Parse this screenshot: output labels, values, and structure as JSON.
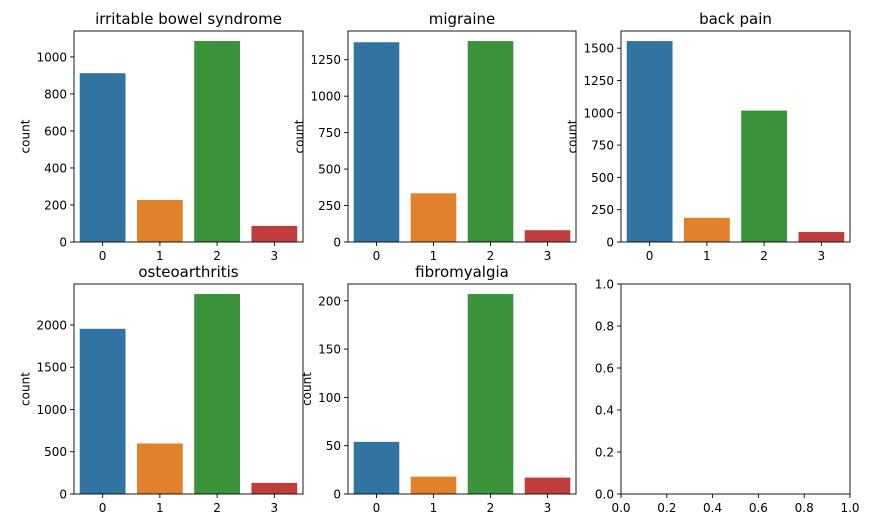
{
  "figure": {
    "background": "#ffffff"
  },
  "palette": [
    "#3274a1",
    "#e1812c",
    "#3a923a",
    "#c03d3e"
  ],
  "chart_data": [
    {
      "type": "bar",
      "title": "irritable bowel syndrome",
      "xlabel": "",
      "ylabel": "count",
      "categories": [
        "0",
        "1",
        "2",
        "3"
      ],
      "values": [
        912,
        227,
        1086,
        87
      ],
      "ylim": [
        0,
        1140
      ],
      "yticks": [
        0,
        200,
        400,
        600,
        800,
        1000
      ],
      "ytick_labels": [
        "0",
        "200",
        "400",
        "600",
        "800",
        "1000"
      ],
      "grid": false,
      "legend": "none"
    },
    {
      "type": "bar",
      "title": "migraine",
      "xlabel": "",
      "ylabel": "count",
      "categories": [
        "0",
        "1",
        "2",
        "3"
      ],
      "values": [
        1370,
        334,
        1378,
        81
      ],
      "ylim": [
        0,
        1447
      ],
      "yticks": [
        0,
        250,
        500,
        750,
        1000,
        1250
      ],
      "ytick_labels": [
        "0",
        "250",
        "500",
        "750",
        "1000",
        "1250"
      ],
      "grid": false,
      "legend": "none"
    },
    {
      "type": "bar",
      "title": "back pain",
      "xlabel": "",
      "ylabel": "count",
      "categories": [
        "0",
        "1",
        "2",
        "3"
      ],
      "values": [
        1555,
        187,
        1017,
        77
      ],
      "ylim": [
        0,
        1633
      ],
      "yticks": [
        0,
        250,
        500,
        750,
        1000,
        1250,
        1500
      ],
      "ytick_labels": [
        "0",
        "250",
        "500",
        "750",
        "1000",
        "1250",
        "1500"
      ],
      "grid": false,
      "legend": "none"
    },
    {
      "type": "bar",
      "title": "osteoarthritis",
      "xlabel": "",
      "ylabel": "count",
      "categories": [
        "0",
        "1",
        "2",
        "3"
      ],
      "values": [
        1955,
        598,
        2367,
        131
      ],
      "ylim": [
        0,
        2485
      ],
      "yticks": [
        0,
        500,
        1000,
        1500,
        2000
      ],
      "ytick_labels": [
        "0",
        "500",
        "1000",
        "1500",
        "2000"
      ],
      "grid": false,
      "legend": "none"
    },
    {
      "type": "bar",
      "title": "fibromyalgia",
      "xlabel": "",
      "ylabel": "count",
      "categories": [
        "0",
        "1",
        "2",
        "3"
      ],
      "values": [
        54,
        18,
        207,
        17
      ],
      "ylim": [
        0,
        217.4
      ],
      "yticks": [
        0,
        50,
        100,
        150,
        200
      ],
      "ytick_labels": [
        "0",
        "50",
        "100",
        "150",
        "200"
      ],
      "grid": false,
      "legend": "none"
    },
    {
      "type": "empty",
      "title": "",
      "xlabel": "",
      "ylabel": "",
      "xlim": [
        0,
        1
      ],
      "ylim": [
        0,
        1
      ],
      "xticks": [
        0,
        0.2,
        0.4,
        0.6,
        0.8,
        1.0
      ],
      "xtick_labels": [
        "0.0",
        "0.2",
        "0.4",
        "0.6",
        "0.8",
        "1.0"
      ],
      "yticks": [
        0,
        0.2,
        0.4,
        0.6,
        0.8,
        1.0
      ],
      "ytick_labels": [
        "0.0",
        "0.2",
        "0.4",
        "0.6",
        "0.8",
        "1.0"
      ],
      "grid": false,
      "legend": "none"
    }
  ]
}
